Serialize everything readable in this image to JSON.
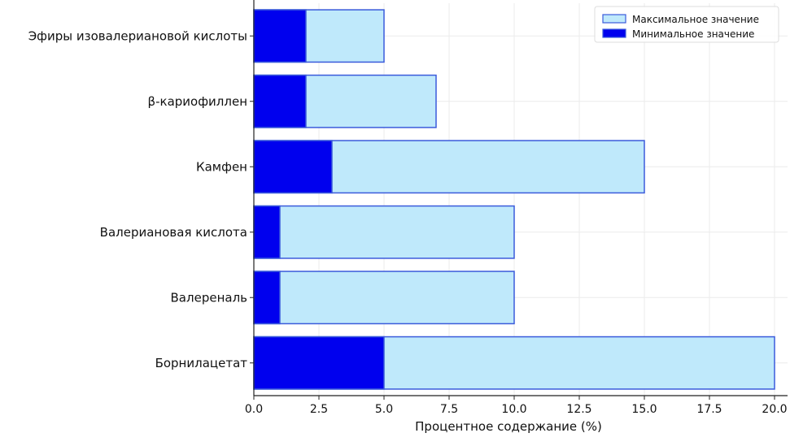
{
  "chart_data": {
    "type": "bar",
    "orientation": "horizontal",
    "stacked": false,
    "overlay": true,
    "title": "",
    "xlabel": "Процентное содержание (%)",
    "ylabel": "",
    "xlim": [
      0,
      20.5
    ],
    "xticks": [
      0.0,
      2.5,
      5.0,
      7.5,
      10.0,
      12.5,
      15.0,
      17.5,
      20.0
    ],
    "xtick_labels": [
      "0.0",
      "2.5",
      "5.0",
      "7.5",
      "10.0",
      "12.5",
      "15.0",
      "17.5",
      "20.0"
    ],
    "grid": true,
    "legend_position": "top-right",
    "categories": [
      "Эфиры изовалериановой кислоты",
      "β-кариофиллен",
      "Камфен",
      "Валериановая кислота",
      "Валереналь",
      "Борнилацетат"
    ],
    "series": [
      {
        "name": "Максимальное значение",
        "values": [
          5,
          7,
          15,
          10,
          10,
          20
        ],
        "color": "#bfe9fb",
        "edge_color": "#3b5bdb"
      },
      {
        "name": "Минимальное значение",
        "values": [
          2,
          2,
          3,
          1,
          1,
          5
        ],
        "color": "#0000ee",
        "edge_color": "#3b5bdb"
      }
    ]
  }
}
